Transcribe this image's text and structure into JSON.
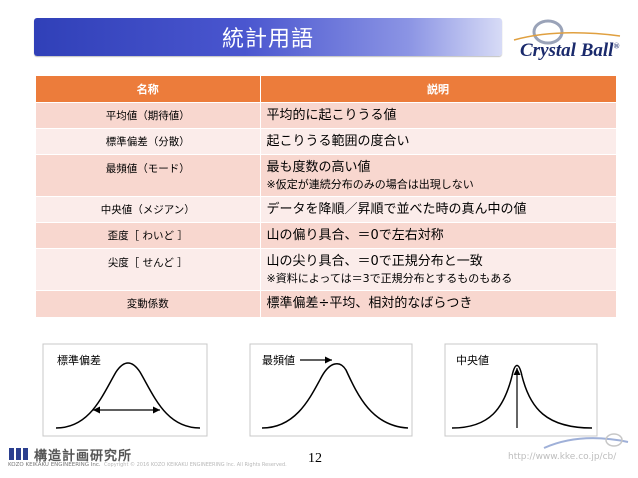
{
  "slide": {
    "title": "統計用語",
    "logo_text": "Crystal Ball",
    "logo_mark": "®"
  },
  "table": {
    "headers": {
      "name": "名称",
      "description": "説明"
    },
    "rows": [
      {
        "name": "平均値（期待値）",
        "description": "平均的に起こりうる値",
        "note": ""
      },
      {
        "name": "標準偏差（分散）",
        "description": "起こりうる範囲の度合い",
        "note": ""
      },
      {
        "name": "最頻値（モード）",
        "description": "最も度数の高い値",
        "note": "※仮定が連続分布のみの場合は出現しない"
      },
      {
        "name": "中央値（メジアン）",
        "description": "データを降順／昇順で並べた時の真ん中の値",
        "note": ""
      },
      {
        "name": "歪度［ わいど ］",
        "description": "山の偏り具合、＝0で左右対称",
        "note": ""
      },
      {
        "name": "尖度［ せんど ］",
        "description": "山の尖り具合、＝0で正規分布と一致",
        "note": "※資料によっては＝3で正規分布とするものもある"
      },
      {
        "name": "変動係数",
        "description": "標準偏差÷平均、相対的なばらつき",
        "note": ""
      }
    ]
  },
  "diagrams": {
    "stddev_label": "標準偏差",
    "mode_label": "最頻値",
    "median_label": "中央値"
  },
  "footer": {
    "company_name": "構造計画研究所",
    "company_en": "KOZO KEIKAKU ENGINEERING Inc.",
    "copyright": "Copyright © 2016 KOZO KEIKAKU ENGINEERING Inc. All Rights Reserved.",
    "page_number": "12",
    "url": "http://www.kke.co.jp/cb/"
  }
}
